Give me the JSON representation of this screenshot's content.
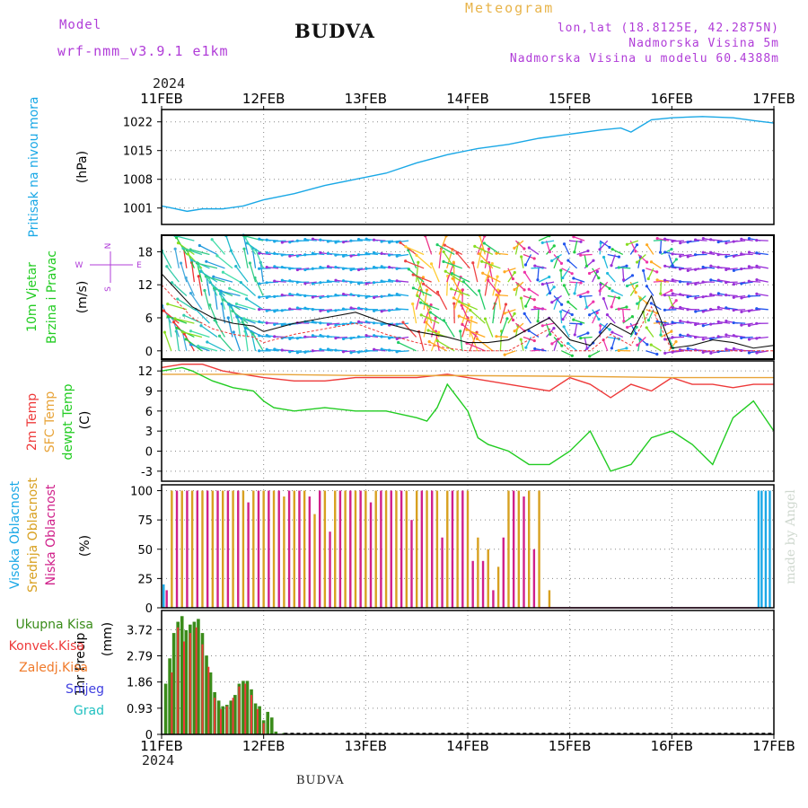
{
  "header": {
    "model_label": "Model",
    "model_name": "wrf-nmm_v3.9.1 e1km",
    "title": "BUDVA",
    "meteogram_label": "Meteogram",
    "lonlat": "lon,lat (18.8125E, 42.2875N)",
    "altitude": "Nadmorska Visina 5m",
    "model_altitude": "Nadmorska Visina u modelu 60.4388m",
    "year_top": "2024",
    "year_bottom": "2024",
    "footer": "BUDVA",
    "watermark": "made by Angel"
  },
  "colors": {
    "pressure": "#1aa8e6",
    "temp2m": "#ee3a3a",
    "sfcTemp": "#e8a43a",
    "dewpoint": "#22cc22",
    "high_cloud": "#1aa8e6",
    "mid_cloud": "#d8a020",
    "low_cloud": "#d0208a",
    "precip_total": "#3a8c1a",
    "precip_conv": "#ee3a3a",
    "precip_frozen": "#f07a2a",
    "snow": "#4040e0",
    "hail": "#20c0c0",
    "axis_label_purple": "#b03cd8"
  },
  "chart_data": [
    {
      "type": "line",
      "panel": "pressure",
      "ylabel": "Pritisak na nivou mora",
      "units": "(hPa)",
      "x_ticks": [
        "11FEB",
        "12FEB",
        "13FEB",
        "14FEB",
        "15FEB",
        "16FEB",
        "17FEB"
      ],
      "yticks": [
        1001,
        1008,
        1015,
        1022
      ],
      "ylim": [
        997,
        1025
      ],
      "series": [
        {
          "x": [
            0,
            0.1,
            0.25,
            0.4,
            0.6,
            0.8,
            1.0,
            1.3,
            1.6,
            1.9,
            2.2,
            2.5,
            2.8,
            3.1,
            3.4,
            3.7,
            4.0,
            4.3,
            4.5,
            4.6,
            4.7,
            4.8,
            5.0,
            5.3,
            5.6,
            5.8,
            6.0
          ],
          "values": [
            1001.5,
            1001.0,
            1000.2,
            1000.8,
            1000.8,
            1001.5,
            1003.0,
            1004.5,
            1006.5,
            1008.0,
            1009.5,
            1012.0,
            1014.0,
            1015.5,
            1016.5,
            1018.0,
            1019.0,
            1020.0,
            1020.5,
            1019.5,
            1021.0,
            1022.5,
            1023.0,
            1023.3,
            1023.0,
            1022.3,
            1021.7
          ]
        }
      ]
    },
    {
      "type": "line",
      "panel": "wind",
      "ylabel": "10m Vjetar Brzina i Pravac",
      "units": "(m/s)",
      "compass": [
        "N",
        "W",
        "E",
        "S"
      ],
      "yticks": [
        0,
        6,
        12,
        18
      ],
      "ylim": [
        -1.5,
        21
      ],
      "series": [
        {
          "name": "speed",
          "x": [
            0,
            0.15,
            0.3,
            0.5,
            0.7,
            0.9,
            1.0,
            1.3,
            1.6,
            1.9,
            2.2,
            2.5,
            2.8,
            3.0,
            3.2,
            3.4,
            3.6,
            3.8,
            4.0,
            4.2,
            4.4,
            4.6,
            4.8,
            5.0,
            5.2,
            5.4,
            5.6,
            5.8,
            6.0
          ],
          "values": [
            14,
            11,
            8,
            6,
            5,
            4.5,
            3.5,
            5,
            6,
            7,
            5,
            3.5,
            2.5,
            1.5,
            1.5,
            2,
            4,
            6,
            2,
            1,
            5,
            3,
            10,
            0.5,
            1,
            2,
            1.5,
            0.5,
            1
          ]
        }
      ]
    },
    {
      "type": "line",
      "panel": "temperature",
      "ylabel_lines": [
        "2m Temp",
        "SFC Temp",
        "dewpt Temp"
      ],
      "units": "(C)",
      "yticks": [
        -3,
        0,
        3,
        6,
        9,
        12
      ],
      "ylim": [
        -4.5,
        13.5
      ],
      "series": [
        {
          "name": "2m Temp",
          "x": [
            0,
            0.2,
            0.4,
            0.6,
            0.8,
            1.0,
            1.3,
            1.6,
            1.9,
            2.2,
            2.5,
            2.8,
            3.0,
            3.2,
            3.4,
            3.6,
            3.8,
            4.0,
            4.2,
            4.4,
            4.6,
            4.8,
            5.0,
            5.2,
            5.4,
            5.6,
            5.8,
            6.0
          ],
          "values": [
            12.5,
            13,
            13,
            12,
            11.5,
            11,
            10.5,
            10.5,
            11,
            11,
            11,
            11.5,
            11,
            10.5,
            10,
            9.5,
            9.0,
            11,
            10,
            8,
            10,
            9,
            11,
            10,
            10,
            9.5,
            10,
            10
          ]
        },
        {
          "name": "SFC Temp",
          "x": [
            0,
            1,
            2,
            3,
            4,
            5,
            6
          ],
          "values": [
            11.5,
            11.5,
            11.3,
            11.3,
            11.2,
            11.0,
            11.0
          ]
        },
        {
          "name": "dewpt Temp",
          "x": [
            0,
            0.2,
            0.3,
            0.5,
            0.7,
            0.9,
            1.0,
            1.1,
            1.3,
            1.6,
            1.9,
            2.2,
            2.5,
            2.6,
            2.7,
            2.8,
            2.9,
            3.0,
            3.1,
            3.2,
            3.4,
            3.6,
            3.8,
            4.0,
            4.2,
            4.4,
            4.6,
            4.8,
            5.0,
            5.2,
            5.4,
            5.6,
            5.8,
            6.0
          ],
          "values": [
            12,
            12.5,
            12,
            10.5,
            9.5,
            9,
            7.5,
            6.5,
            6,
            6.5,
            6,
            6,
            5,
            4.5,
            6.5,
            10,
            8,
            6,
            2,
            1,
            0,
            -2,
            -2,
            0,
            3,
            -3,
            -2,
            2,
            3,
            1,
            -2,
            5,
            7.5,
            3
          ]
        }
      ]
    },
    {
      "type": "bar",
      "panel": "clouds",
      "ylabel_lines": [
        "Visoka Oblacnost",
        "Srednja Oblacnost",
        "Niska Oblacnost"
      ],
      "units": "(%)",
      "yticks": [
        0,
        25,
        50,
        75,
        100
      ],
      "ylim": [
        0,
        105
      ],
      "series": [
        {
          "name": "Niska Oblacnost",
          "x": [
            0.05,
            0.15,
            0.25,
            0.35,
            0.45,
            0.55,
            0.65,
            0.75,
            0.85,
            0.95,
            1.05,
            1.15,
            1.25,
            1.35,
            1.45,
            1.55,
            1.65,
            1.75,
            1.85,
            1.95,
            2.05,
            2.15,
            2.25,
            2.35,
            2.45,
            2.55,
            2.65,
            2.75,
            2.85,
            2.95,
            3.05,
            3.15,
            3.25,
            3.35,
            3.45,
            3.55,
            3.65,
            3.75
          ],
          "values": [
            15,
            100,
            100,
            100,
            100,
            100,
            100,
            100,
            90,
            100,
            100,
            100,
            100,
            100,
            95,
            100,
            65,
            100,
            100,
            100,
            90,
            100,
            100,
            100,
            75,
            100,
            100,
            60,
            100,
            100,
            40,
            40,
            15,
            60,
            100,
            95,
            50,
            0
          ]
        },
        {
          "name": "Srednja Oblacnost",
          "x": [
            0.1,
            0.2,
            0.3,
            0.4,
            0.5,
            0.6,
            0.7,
            0.8,
            0.9,
            1.0,
            1.1,
            1.2,
            1.3,
            1.4,
            1.5,
            1.6,
            1.7,
            1.8,
            1.9,
            2.0,
            2.1,
            2.2,
            2.3,
            2.4,
            2.5,
            2.6,
            2.7,
            2.8,
            2.9,
            3.0,
            3.1,
            3.2,
            3.3,
            3.4,
            3.5,
            3.6,
            3.7,
            3.8
          ],
          "values": [
            100,
            100,
            100,
            100,
            100,
            100,
            100,
            100,
            100,
            100,
            100,
            95,
            100,
            100,
            80,
            100,
            100,
            100,
            100,
            100,
            100,
            100,
            100,
            100,
            100,
            100,
            100,
            100,
            100,
            100,
            60,
            50,
            35,
            100,
            100,
            100,
            100,
            15
          ]
        },
        {
          "name": "Visoka Oblacnost",
          "x": [
            0.02,
            5.85,
            5.88,
            5.92,
            5.96
          ],
          "values": [
            20,
            100,
            100,
            100,
            100
          ]
        }
      ]
    },
    {
      "type": "bar",
      "panel": "precip",
      "ylabel": "1hr Precip",
      "units": "(mm)",
      "yticks": [
        0,
        0.93,
        1.86,
        2.79,
        3.72
      ],
      "ylim": [
        0,
        4.4
      ],
      "legend": [
        "Ukupna Kisa",
        "Konvek.Kisa",
        "Zaledj.Kisa",
        "Snijeg",
        "Grad"
      ],
      "series": [
        {
          "name": "Ukupna Kisa",
          "x": [
            0.04,
            0.08,
            0.12,
            0.16,
            0.2,
            0.24,
            0.28,
            0.32,
            0.36,
            0.4,
            0.44,
            0.48,
            0.52,
            0.56,
            0.6,
            0.64,
            0.68,
            0.72,
            0.76,
            0.8,
            0.84,
            0.88,
            0.92,
            0.96,
            1.0,
            1.04,
            1.08,
            1.12,
            1.2
          ],
          "values": [
            1.8,
            2.7,
            3.6,
            4.0,
            4.2,
            3.7,
            3.9,
            4.0,
            4.1,
            3.6,
            2.8,
            2.2,
            1.5,
            1.2,
            1.0,
            1.05,
            1.2,
            1.4,
            1.8,
            1.9,
            1.9,
            1.6,
            1.1,
            1.0,
            0.5,
            0.8,
            0.6,
            0.1,
            0.05
          ]
        },
        {
          "name": "Konvek.Kisa",
          "x": [
            0.1,
            0.16,
            0.22,
            0.28,
            0.34,
            0.4,
            0.46,
            0.52,
            0.58,
            0.64,
            0.7,
            0.76,
            0.82,
            0.88,
            0.94,
            1.0
          ],
          "values": [
            2.2,
            3.8,
            3.3,
            3.6,
            3.8,
            3.2,
            2.4,
            1.3,
            0.9,
            1.0,
            1.3,
            1.7,
            1.8,
            1.4,
            0.9,
            0.4
          ]
        }
      ]
    }
  ]
}
